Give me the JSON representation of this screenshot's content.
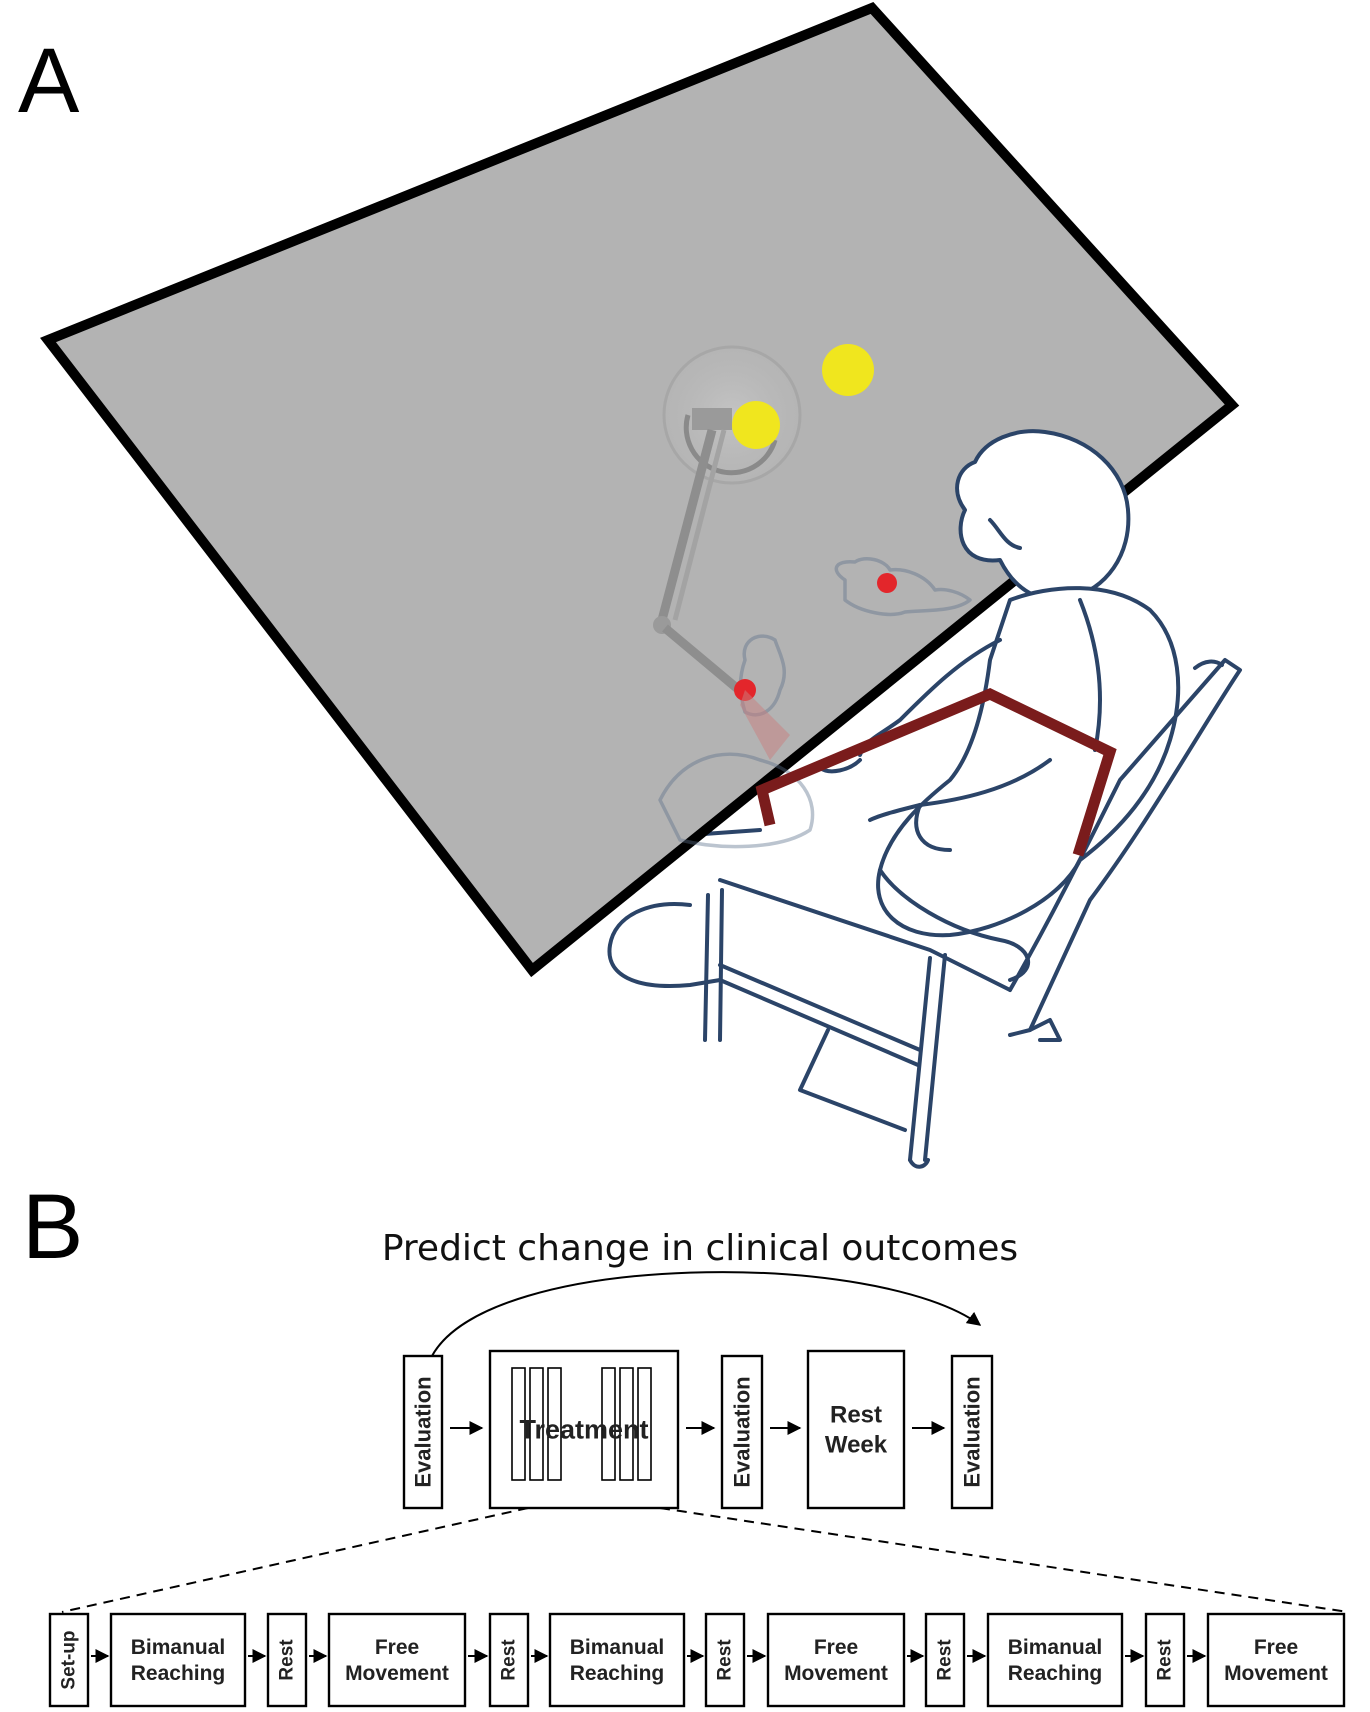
{
  "panel_a": {
    "label": "A",
    "colors": {
      "table_fill": "#b3b3b3",
      "table_border": "#000000",
      "target": "#f0e61e",
      "marker": "#e3262b",
      "robot_frame": "#7a1c1c",
      "person_outline": "#2b4468"
    }
  },
  "panel_b": {
    "label": "B",
    "title": "Predict change in clinical outcomes",
    "timeline": [
      {
        "name": "evaluation-1",
        "label": "Evaluation",
        "orientation": "vertical"
      },
      {
        "name": "treatment",
        "label": "Treatment",
        "orientation": "horizontal"
      },
      {
        "name": "evaluation-2",
        "label": "Evaluation",
        "orientation": "vertical"
      },
      {
        "name": "rest-week",
        "label": "Rest\nWeek",
        "orientation": "horizontal"
      },
      {
        "name": "evaluation-3",
        "label": "Evaluation",
        "orientation": "vertical"
      }
    ],
    "session": [
      {
        "name": "set-up",
        "label": "Set-up",
        "orientation": "vertical"
      },
      {
        "name": "bimanual-reaching-1",
        "label": "Bimanual\nReaching",
        "orientation": "horizontal"
      },
      {
        "name": "rest-1",
        "label": "Rest",
        "orientation": "vertical"
      },
      {
        "name": "free-movement-1",
        "label": "Free\nMovement",
        "orientation": "horizontal"
      },
      {
        "name": "rest-2",
        "label": "Rest",
        "orientation": "vertical"
      },
      {
        "name": "bimanual-reaching-2",
        "label": "Bimanual\nReaching",
        "orientation": "horizontal"
      },
      {
        "name": "rest-3",
        "label": "Rest",
        "orientation": "vertical"
      },
      {
        "name": "free-movement-2",
        "label": "Free\nMovement",
        "orientation": "horizontal"
      },
      {
        "name": "rest-4",
        "label": "Rest",
        "orientation": "vertical"
      },
      {
        "name": "bimanual-reaching-3",
        "label": "Bimanual\nReaching",
        "orientation": "horizontal"
      },
      {
        "name": "rest-5",
        "label": "Rest",
        "orientation": "vertical"
      },
      {
        "name": "free-movement-3",
        "label": "Free\nMovement",
        "orientation": "horizontal"
      }
    ]
  }
}
